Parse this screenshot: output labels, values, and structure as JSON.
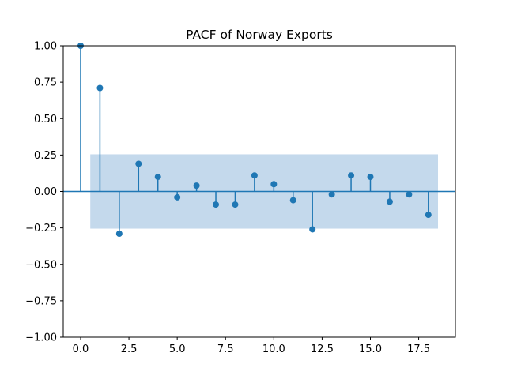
{
  "chart_data": {
    "type": "stem",
    "title": "PACF of Norway Exports",
    "xlabel": "",
    "ylabel": "",
    "xlim": [
      -0.9,
      19.4
    ],
    "ylim": [
      -1.0,
      1.0
    ],
    "xticks": [
      0,
      2.5,
      5,
      7.5,
      10,
      12.5,
      15,
      17.5
    ],
    "xtick_labels": [
      "0.0",
      "2.5",
      "5.0",
      "7.5",
      "10.0",
      "12.5",
      "15.0",
      "17.5"
    ],
    "yticks": [
      -1.0,
      -0.75,
      -0.5,
      -0.25,
      0.0,
      0.25,
      0.5,
      0.75,
      1.0
    ],
    "ytick_labels": [
      "−1.00",
      "−0.75",
      "−0.50",
      "−0.25",
      "0.00",
      "0.25",
      "0.50",
      "0.75",
      "1.00"
    ],
    "lags": [
      0,
      1,
      2,
      3,
      4,
      5,
      6,
      7,
      8,
      9,
      10,
      11,
      12,
      13,
      14,
      15,
      16,
      17,
      18
    ],
    "values": [
      1.0,
      0.71,
      -0.29,
      0.19,
      0.1,
      -0.04,
      0.04,
      -0.09,
      -0.09,
      0.11,
      0.05,
      -0.06,
      -0.26,
      -0.02,
      0.11,
      0.1,
      -0.07,
      -0.02,
      -0.16
    ],
    "confidence_band": {
      "x_start": 0.5,
      "x_end": 18.5,
      "upper": 0.255,
      "lower": -0.255
    },
    "grid": false,
    "colors": {
      "stem": "#1f77b4",
      "band": "#c4d9ec",
      "axes": "#000000"
    }
  }
}
